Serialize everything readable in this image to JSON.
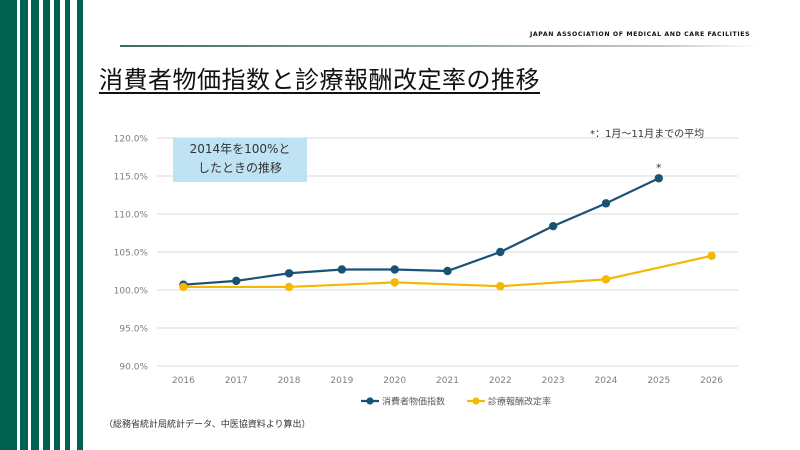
{
  "header": {
    "organization": "JAPAN ASSOCIATION OF MEDICAL AND CARE FACILITIES",
    "title": "消費者物価指数と診療報酬改定率の推移"
  },
  "annotations": {
    "baseline_box_line1": "2014年を100%と",
    "baseline_box_line2": "したときの推移",
    "footnote": "*：1月～11月までの平均",
    "asterisk": "*",
    "source": "（総務省統計局統計データ、中医協資料より算出）"
  },
  "colors": {
    "brand_green": "#006150",
    "cpi": "#1a5276",
    "fee": "#f5b800"
  },
  "chart_data": {
    "type": "line",
    "title": "消費者物価指数と診療報酬改定率の推移",
    "xlabel": "",
    "ylabel": "",
    "x": [
      "2016",
      "2017",
      "2018",
      "2019",
      "2020",
      "2021",
      "2022",
      "2023",
      "2024",
      "2025",
      "2026"
    ],
    "ylim": [
      90,
      120
    ],
    "yticks": [
      90,
      95,
      100,
      105,
      110,
      115,
      120
    ],
    "ytick_labels": [
      "90.0%",
      "95.0%",
      "100.0%",
      "105.0%",
      "110.0%",
      "115.0%",
      "120.0%"
    ],
    "grid": true,
    "legend_position": "bottom",
    "series": [
      {
        "name": "消費者物価指数",
        "color": "#1a5276",
        "x": [
          "2016",
          "2017",
          "2018",
          "2019",
          "2020",
          "2021",
          "2022",
          "2023",
          "2024",
          "2025"
        ],
        "values": [
          100.7,
          101.2,
          102.2,
          102.7,
          102.7,
          102.5,
          105.0,
          108.4,
          111.4,
          114.7
        ],
        "annotation": {
          "x": "2025",
          "text": "*"
        }
      },
      {
        "name": "診療報酬改定率",
        "color": "#f5b800",
        "x": [
          "2016",
          "2018",
          "2020",
          "2022",
          "2024",
          "2026"
        ],
        "values": [
          100.4,
          100.4,
          101.0,
          100.5,
          101.4,
          104.5
        ]
      }
    ]
  }
}
